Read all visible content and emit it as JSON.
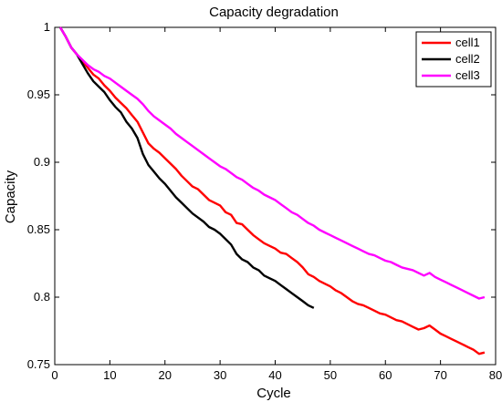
{
  "chart_data": {
    "type": "line",
    "title": "Capacity degradation",
    "xlabel": "Cycle",
    "ylabel": "Capacity",
    "xlim": [
      0,
      80
    ],
    "ylim": [
      0.75,
      1
    ],
    "xticks": [
      0,
      10,
      20,
      30,
      40,
      50,
      60,
      70,
      80
    ],
    "xtick_labels": [
      "0",
      "10",
      "20",
      "30",
      "40",
      "50",
      "60",
      "70",
      "80"
    ],
    "yticks": [
      0.75,
      0.8,
      0.85,
      0.9,
      0.95,
      1
    ],
    "ytick_labels": [
      "0.75",
      "0.8",
      "0.85",
      "0.9",
      "0.95",
      "1"
    ],
    "grid": false,
    "legend_position": "top-right",
    "series": [
      {
        "name": "cell1",
        "color": "#ff0000",
        "points": [
          [
            1,
            1.0
          ],
          [
            2,
            0.993
          ],
          [
            3,
            0.985
          ],
          [
            4,
            0.98
          ],
          [
            5,
            0.975
          ],
          [
            6,
            0.97
          ],
          [
            7,
            0.965
          ],
          [
            8,
            0.962
          ],
          [
            9,
            0.957
          ],
          [
            10,
            0.953
          ],
          [
            11,
            0.948
          ],
          [
            12,
            0.944
          ],
          [
            13,
            0.94
          ],
          [
            14,
            0.935
          ],
          [
            15,
            0.93
          ],
          [
            16,
            0.922
          ],
          [
            17,
            0.914
          ],
          [
            18,
            0.91
          ],
          [
            19,
            0.907
          ],
          [
            20,
            0.903
          ],
          [
            21,
            0.899
          ],
          [
            22,
            0.895
          ],
          [
            23,
            0.89
          ],
          [
            24,
            0.886
          ],
          [
            25,
            0.882
          ],
          [
            26,
            0.88
          ],
          [
            27,
            0.876
          ],
          [
            28,
            0.872
          ],
          [
            29,
            0.87
          ],
          [
            30,
            0.868
          ],
          [
            31,
            0.863
          ],
          [
            32,
            0.861
          ],
          [
            33,
            0.855
          ],
          [
            34,
            0.854
          ],
          [
            35,
            0.85
          ],
          [
            36,
            0.846
          ],
          [
            37,
            0.843
          ],
          [
            38,
            0.84
          ],
          [
            39,
            0.838
          ],
          [
            40,
            0.836
          ],
          [
            41,
            0.833
          ],
          [
            42,
            0.832
          ],
          [
            43,
            0.829
          ],
          [
            44,
            0.826
          ],
          [
            45,
            0.822
          ],
          [
            46,
            0.817
          ],
          [
            47,
            0.815
          ],
          [
            48,
            0.812
          ],
          [
            49,
            0.81
          ],
          [
            50,
            0.808
          ],
          [
            51,
            0.805
          ],
          [
            52,
            0.803
          ],
          [
            53,
            0.8
          ],
          [
            54,
            0.797
          ],
          [
            55,
            0.795
          ],
          [
            56,
            0.794
          ],
          [
            57,
            0.792
          ],
          [
            58,
            0.79
          ],
          [
            59,
            0.788
          ],
          [
            60,
            0.787
          ],
          [
            61,
            0.785
          ],
          [
            62,
            0.783
          ],
          [
            63,
            0.782
          ],
          [
            64,
            0.78
          ],
          [
            65,
            0.778
          ],
          [
            66,
            0.776
          ],
          [
            67,
            0.777
          ],
          [
            68,
            0.779
          ],
          [
            69,
            0.776
          ],
          [
            70,
            0.773
          ],
          [
            71,
            0.771
          ],
          [
            72,
            0.769
          ],
          [
            73,
            0.767
          ],
          [
            74,
            0.765
          ],
          [
            75,
            0.763
          ],
          [
            76,
            0.761
          ],
          [
            77,
            0.758
          ],
          [
            78,
            0.759
          ]
        ]
      },
      {
        "name": "cell2",
        "color": "#000000",
        "points": [
          [
            1,
            1.0
          ],
          [
            2,
            0.993
          ],
          [
            3,
            0.985
          ],
          [
            4,
            0.98
          ],
          [
            5,
            0.973
          ],
          [
            6,
            0.966
          ],
          [
            7,
            0.96
          ],
          [
            8,
            0.956
          ],
          [
            9,
            0.952
          ],
          [
            10,
            0.946
          ],
          [
            11,
            0.941
          ],
          [
            12,
            0.937
          ],
          [
            13,
            0.93
          ],
          [
            14,
            0.925
          ],
          [
            15,
            0.918
          ],
          [
            16,
            0.906
          ],
          [
            17,
            0.898
          ],
          [
            18,
            0.893
          ],
          [
            19,
            0.888
          ],
          [
            20,
            0.884
          ],
          [
            21,
            0.879
          ],
          [
            22,
            0.874
          ],
          [
            23,
            0.87
          ],
          [
            24,
            0.866
          ],
          [
            25,
            0.862
          ],
          [
            26,
            0.859
          ],
          [
            27,
            0.856
          ],
          [
            28,
            0.852
          ],
          [
            29,
            0.85
          ],
          [
            30,
            0.847
          ],
          [
            31,
            0.843
          ],
          [
            32,
            0.839
          ],
          [
            33,
            0.832
          ],
          [
            34,
            0.828
          ],
          [
            35,
            0.826
          ],
          [
            36,
            0.822
          ],
          [
            37,
            0.82
          ],
          [
            38,
            0.816
          ],
          [
            39,
            0.814
          ],
          [
            40,
            0.812
          ],
          [
            41,
            0.809
          ],
          [
            42,
            0.806
          ],
          [
            43,
            0.803
          ],
          [
            44,
            0.8
          ],
          [
            45,
            0.797
          ],
          [
            46,
            0.794
          ],
          [
            47,
            0.792
          ]
        ]
      },
      {
        "name": "cell3",
        "color": "#ff00ff",
        "points": [
          [
            1,
            1.0
          ],
          [
            2,
            0.993
          ],
          [
            3,
            0.985
          ],
          [
            4,
            0.98
          ],
          [
            5,
            0.976
          ],
          [
            6,
            0.972
          ],
          [
            7,
            0.969
          ],
          [
            8,
            0.967
          ],
          [
            9,
            0.964
          ],
          [
            10,
            0.962
          ],
          [
            11,
            0.959
          ],
          [
            12,
            0.956
          ],
          [
            13,
            0.953
          ],
          [
            14,
            0.95
          ],
          [
            15,
            0.947
          ],
          [
            16,
            0.943
          ],
          [
            17,
            0.938
          ],
          [
            18,
            0.934
          ],
          [
            19,
            0.931
          ],
          [
            20,
            0.928
          ],
          [
            21,
            0.925
          ],
          [
            22,
            0.921
          ],
          [
            23,
            0.918
          ],
          [
            24,
            0.915
          ],
          [
            25,
            0.912
          ],
          [
            26,
            0.909
          ],
          [
            27,
            0.906
          ],
          [
            28,
            0.903
          ],
          [
            29,
            0.9
          ],
          [
            30,
            0.897
          ],
          [
            31,
            0.895
          ],
          [
            32,
            0.892
          ],
          [
            33,
            0.889
          ],
          [
            34,
            0.887
          ],
          [
            35,
            0.884
          ],
          [
            36,
            0.881
          ],
          [
            37,
            0.879
          ],
          [
            38,
            0.876
          ],
          [
            39,
            0.874
          ],
          [
            40,
            0.872
          ],
          [
            41,
            0.869
          ],
          [
            42,
            0.866
          ],
          [
            43,
            0.863
          ],
          [
            44,
            0.861
          ],
          [
            45,
            0.858
          ],
          [
            46,
            0.855
          ],
          [
            47,
            0.853
          ],
          [
            48,
            0.85
          ],
          [
            49,
            0.848
          ],
          [
            50,
            0.846
          ],
          [
            51,
            0.844
          ],
          [
            52,
            0.842
          ],
          [
            53,
            0.84
          ],
          [
            54,
            0.838
          ],
          [
            55,
            0.836
          ],
          [
            56,
            0.834
          ],
          [
            57,
            0.832
          ],
          [
            58,
            0.831
          ],
          [
            59,
            0.829
          ],
          [
            60,
            0.827
          ],
          [
            61,
            0.826
          ],
          [
            62,
            0.824
          ],
          [
            63,
            0.822
          ],
          [
            64,
            0.821
          ],
          [
            65,
            0.82
          ],
          [
            66,
            0.818
          ],
          [
            67,
            0.816
          ],
          [
            68,
            0.818
          ],
          [
            69,
            0.815
          ],
          [
            70,
            0.813
          ],
          [
            71,
            0.811
          ],
          [
            72,
            0.809
          ],
          [
            73,
            0.807
          ],
          [
            74,
            0.805
          ],
          [
            75,
            0.803
          ],
          [
            76,
            0.801
          ],
          [
            77,
            0.799
          ],
          [
            78,
            0.8
          ]
        ]
      }
    ]
  }
}
